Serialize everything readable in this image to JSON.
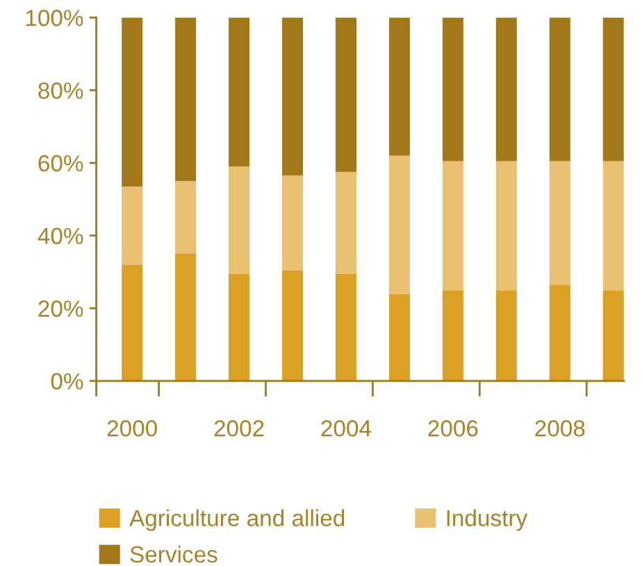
{
  "chart_data": {
    "type": "bar",
    "stacked": true,
    "categories": [
      "2000",
      null,
      "2002",
      null,
      "2004",
      null,
      "2006",
      null,
      "2008",
      null
    ],
    "series": [
      {
        "name": "Agriculture and allied",
        "color": "#dca024",
        "values": [
          32,
          35,
          29.5,
          30.5,
          29.5,
          24,
          25,
          25,
          26.5,
          25
        ]
      },
      {
        "name": "Industry",
        "color": "#eac172",
        "values": [
          21.5,
          20,
          29.5,
          26,
          28,
          38,
          35.5,
          35.5,
          34,
          35.5
        ]
      },
      {
        "name": "Services",
        "color": "#a27818",
        "values": [
          46.5,
          45,
          41,
          43.5,
          42.5,
          38,
          39.5,
          39.5,
          39.5,
          39.5
        ]
      }
    ],
    "ylim": [
      0,
      100
    ],
    "yticks": [
      {
        "value": 0,
        "label": "0%"
      },
      {
        "value": 20,
        "label": "20%"
      },
      {
        "value": 40,
        "label": "40%"
      },
      {
        "value": 60,
        "label": "60%"
      },
      {
        "value": 80,
        "label": "80%"
      },
      {
        "value": 100,
        "label": "100%"
      }
    ],
    "grid": false,
    "legend": "bottom"
  }
}
